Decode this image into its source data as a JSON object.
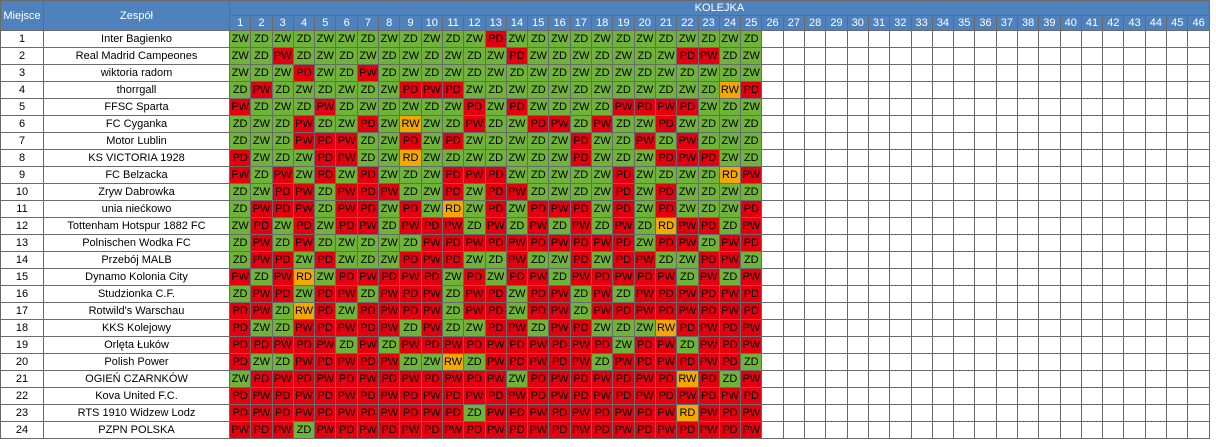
{
  "headers": {
    "place": "Miejsce",
    "team": "Zespół",
    "round_group": "KOLEJKA",
    "rounds": [
      "1",
      "2",
      "3",
      "4",
      "5",
      "6",
      "7",
      "8",
      "9",
      "10",
      "11",
      "12",
      "13",
      "14",
      "15",
      "16",
      "17",
      "18",
      "19",
      "20",
      "21",
      "22",
      "23",
      "24",
      "25",
      "26",
      "27",
      "28",
      "29",
      "30",
      "31",
      "32",
      "33",
      "34",
      "35",
      "36",
      "37",
      "38",
      "39",
      "40",
      "41",
      "42",
      "43",
      "44",
      "45",
      "46"
    ]
  },
  "result_colors": {
    "win": "#70b33b",
    "loss": "#e3000f",
    "draw": "#f2a800"
  },
  "rows": [
    {
      "place": "1",
      "team": "Inter Bagienko",
      "results": [
        "ZW",
        "ZD",
        "ZW",
        "ZD",
        "ZW",
        "ZW",
        "ZD",
        "ZW",
        "ZD",
        "ZW",
        "ZD",
        "ZW",
        "PD",
        "ZW",
        "ZD",
        "ZW",
        "ZD",
        "ZW",
        "ZD",
        "ZW",
        "ZD",
        "ZW",
        "ZD",
        "ZW",
        "ZD"
      ]
    },
    {
      "place": "2",
      "team": "Real Madrid Campeones",
      "results": [
        "ZW",
        "ZD",
        "PW",
        "ZD",
        "ZW",
        "ZD",
        "ZW",
        "ZD",
        "ZW",
        "ZD",
        "ZW",
        "ZD",
        "ZW",
        "PD",
        "ZW",
        "ZD",
        "ZW",
        "ZD",
        "ZW",
        "ZD",
        "ZW",
        "PD",
        "PW",
        "ZD",
        "ZW"
      ]
    },
    {
      "place": "3",
      "team": "wiktoria radom",
      "results": [
        "ZW",
        "ZD",
        "ZW",
        "PD",
        "ZW",
        "ZD",
        "PW",
        "ZD",
        "ZW",
        "ZD",
        "ZW",
        "ZD",
        "ZW",
        "ZD",
        "ZW",
        "ZD",
        "ZW",
        "ZD",
        "ZW",
        "ZD",
        "ZW",
        "ZD",
        "ZW",
        "ZD",
        "ZW"
      ]
    },
    {
      "place": "4",
      "team": "thorrgall",
      "results": [
        "ZD",
        "PW",
        "ZD",
        "ZW",
        "ZD",
        "ZW",
        "ZD",
        "ZW",
        "PD",
        "PW",
        "PD",
        "ZW",
        "ZD",
        "ZW",
        "ZD",
        "ZW",
        "ZD",
        "ZW",
        "ZD",
        "ZW",
        "ZD",
        "ZW",
        "ZD",
        "RW",
        "PD"
      ]
    },
    {
      "place": "5",
      "team": "FFSC Sparta",
      "results": [
        "PW",
        "ZD",
        "ZW",
        "ZD",
        "PW",
        "ZD",
        "ZW",
        "ZD",
        "ZW",
        "ZD",
        "ZW",
        "PD",
        "ZW",
        "PD",
        "ZW",
        "ZD",
        "ZW",
        "ZD",
        "PW",
        "PD",
        "PW",
        "PD",
        "ZW",
        "ZD",
        "ZW"
      ]
    },
    {
      "place": "6",
      "team": "FC Cyganka",
      "results": [
        "ZD",
        "ZW",
        "ZD",
        "PW",
        "ZD",
        "ZW",
        "PD",
        "ZW",
        "RW",
        "ZW",
        "ZD",
        "PW",
        "ZD",
        "ZW",
        "PD",
        "PW",
        "ZD",
        "PW",
        "ZD",
        "ZW",
        "PD",
        "ZW",
        "ZD",
        "ZW",
        "ZD"
      ]
    },
    {
      "place": "7",
      "team": "Motor Lublin",
      "results": [
        "ZD",
        "ZW",
        "ZD",
        "PW",
        "PD",
        "PW",
        "ZD",
        "ZW",
        "PD",
        "ZW",
        "PD",
        "ZW",
        "ZD",
        "ZW",
        "ZD",
        "ZW",
        "PD",
        "ZW",
        "ZD",
        "PW",
        "ZD",
        "PW",
        "ZD",
        "ZW",
        "ZD"
      ]
    },
    {
      "place": "8",
      "team": "KS VICTORIA 1928",
      "results": [
        "PD",
        "ZW",
        "ZD",
        "ZW",
        "PD",
        "PW",
        "ZD",
        "ZW",
        "RD",
        "ZW",
        "ZD",
        "ZW",
        "ZD",
        "ZW",
        "ZD",
        "ZW",
        "PD",
        "ZW",
        "ZD",
        "ZW",
        "PD",
        "PW",
        "PD",
        "ZW",
        "ZD"
      ]
    },
    {
      "place": "9",
      "team": "FC Belzacka",
      "results": [
        "PW",
        "ZD",
        "PW",
        "ZW",
        "PD",
        "ZW",
        "PD",
        "ZW",
        "ZD",
        "ZW",
        "PD",
        "PW",
        "PD",
        "ZW",
        "ZD",
        "ZW",
        "ZD",
        "ZW",
        "PD",
        "ZW",
        "ZD",
        "ZW",
        "ZD",
        "RD",
        "PW"
      ]
    },
    {
      "place": "10",
      "team": "Zryw Dabrowka",
      "results": [
        "ZD",
        "ZW",
        "PD",
        "PW",
        "ZD",
        "PW",
        "PD",
        "PW",
        "ZD",
        "ZW",
        "PD",
        "ZW",
        "PD",
        "PW",
        "ZD",
        "ZW",
        "ZD",
        "ZW",
        "PD",
        "ZW",
        "PD",
        "ZW",
        "ZD",
        "ZW",
        "ZD"
      ]
    },
    {
      "place": "11",
      "team": "unia niećkowo",
      "results": [
        "ZD",
        "PW",
        "PD",
        "PW",
        "ZD",
        "PW",
        "PD",
        "ZW",
        "PD",
        "ZW",
        "RD",
        "ZW",
        "PD",
        "ZW",
        "PD",
        "PW",
        "PD",
        "ZW",
        "PD",
        "ZW",
        "PD",
        "ZW",
        "ZD",
        "ZW",
        "PD"
      ]
    },
    {
      "place": "12",
      "team": "Tottenham Hotspur 1882 FC",
      "results": [
        "ZW",
        "PD",
        "ZW",
        "PD",
        "ZW",
        "PD",
        "PW",
        "ZD",
        "PW",
        "PD",
        "PW",
        "ZD",
        "PW",
        "ZD",
        "PW",
        "ZD",
        "PW",
        "ZD",
        "PW",
        "ZD",
        "RD",
        "PW",
        "PD",
        "ZD",
        "PW"
      ]
    },
    {
      "place": "13",
      "team": "Polnischen Wodka FC",
      "results": [
        "ZD",
        "PW",
        "ZD",
        "PW",
        "ZD",
        "ZW",
        "ZD",
        "ZW",
        "ZD",
        "PW",
        "PD",
        "PW",
        "PD",
        "PW",
        "PD",
        "PW",
        "PD",
        "PW",
        "PD",
        "ZW",
        "PD",
        "PW",
        "ZD",
        "PW",
        "PD"
      ]
    },
    {
      "place": "14",
      "team": "Przebój MALB",
      "results": [
        "ZD",
        "PW",
        "PD",
        "ZW",
        "PD",
        "ZW",
        "ZD",
        "ZW",
        "PD",
        "PW",
        "PD",
        "ZW",
        "ZD",
        "PW",
        "ZD",
        "ZW",
        "PD",
        "ZW",
        "PD",
        "PW",
        "ZD",
        "ZW",
        "PD",
        "PW",
        "ZD"
      ]
    },
    {
      "place": "15",
      "team": "Dynamo Kolonia City",
      "results": [
        "PW",
        "ZD",
        "PW",
        "RD",
        "ZW",
        "PD",
        "PW",
        "PD",
        "PW",
        "PD",
        "ZW",
        "PD",
        "ZW",
        "PD",
        "PW",
        "ZD",
        "PW",
        "PD",
        "PW",
        "PD",
        "PW",
        "ZD",
        "PW",
        "ZD",
        "PW"
      ]
    },
    {
      "place": "16",
      "team": "Studzionka C.F.",
      "results": [
        "ZD",
        "PW",
        "PD",
        "ZW",
        "PD",
        "PW",
        "ZD",
        "PW",
        "PD",
        "PW",
        "ZD",
        "PW",
        "PD",
        "ZW",
        "PD",
        "PW",
        "ZD",
        "PW",
        "ZD",
        "PW",
        "PD",
        "PW",
        "PD",
        "PW",
        "PD"
      ]
    },
    {
      "place": "17",
      "team": "Rotwild's Warschau",
      "results": [
        "PD",
        "PW",
        "ZD",
        "RW",
        "PD",
        "ZW",
        "PD",
        "PW",
        "PD",
        "PW",
        "ZD",
        "PW",
        "PD",
        "ZW",
        "PD",
        "PW",
        "ZD",
        "PW",
        "PD",
        "PW",
        "PD",
        "PW",
        "PD",
        "PW",
        "PD"
      ]
    },
    {
      "place": "18",
      "team": "KKS Kolejowy",
      "results": [
        "PD",
        "ZW",
        "ZD",
        "PW",
        "PD",
        "PW",
        "PD",
        "PW",
        "ZD",
        "PW",
        "ZD",
        "ZW",
        "PD",
        "PW",
        "ZD",
        "PW",
        "PD",
        "ZW",
        "ZD",
        "ZW",
        "RW",
        "PD",
        "PW",
        "PD",
        "PW"
      ]
    },
    {
      "place": "19",
      "team": "Orlęta Łuków",
      "results": [
        "PD",
        "PD",
        "PW",
        "PD",
        "PW",
        "ZD",
        "PW",
        "ZD",
        "PW",
        "PD",
        "PW",
        "PD",
        "PW",
        "PD",
        "PW",
        "PD",
        "PW",
        "PD",
        "ZW",
        "PD",
        "PW",
        "ZD",
        "PW",
        "PD",
        "PW"
      ]
    },
    {
      "place": "20",
      "team": "Polish Power",
      "results": [
        "PD",
        "ZW",
        "ZD",
        "PW",
        "PD",
        "PW",
        "PD",
        "PW",
        "ZD",
        "ZW",
        "RW",
        "ZD",
        "PW",
        "PD",
        "PW",
        "PD",
        "PW",
        "ZD",
        "PW",
        "PD",
        "PW",
        "PD",
        "PW",
        "PD",
        "ZD"
      ]
    },
    {
      "place": "21",
      "team": "OGIEŃ CZARNKÓW",
      "results": [
        "ZW",
        "PD",
        "PW",
        "PD",
        "PW",
        "PD",
        "PW",
        "PD",
        "PW",
        "PD",
        "PW",
        "PD",
        "PW",
        "ZW",
        "PD",
        "PW",
        "PD",
        "PW",
        "PD",
        "PW",
        "PD",
        "RW",
        "PD",
        "ZD",
        "PW"
      ]
    },
    {
      "place": "22",
      "team": "Kova United F.C.",
      "results": [
        "PD",
        "PW",
        "PD",
        "PW",
        "PD",
        "PW",
        "PD",
        "PW",
        "PD",
        "PW",
        "PD",
        "PW",
        "PD",
        "PW",
        "PD",
        "PW",
        "PD",
        "PW",
        "PD",
        "PW",
        "PD",
        "PW",
        "PD",
        "PW",
        "PD"
      ]
    },
    {
      "place": "23",
      "team": "RTS 1910 Widzew Lodz",
      "results": [
        "PD",
        "PW",
        "PD",
        "PW",
        "PD",
        "PW",
        "PD",
        "PW",
        "PD",
        "PW",
        "PD",
        "ZD",
        "PW",
        "PD",
        "PW",
        "PD",
        "PW",
        "PD",
        "PW",
        "PD",
        "PW",
        "RD",
        "PW",
        "PD",
        "PW"
      ]
    },
    {
      "place": "24",
      "team": "PZPN POLSKA",
      "results": [
        "PW",
        "PD",
        "PW",
        "ZD",
        "PW",
        "PD",
        "PW",
        "PD",
        "PW",
        "PD",
        "PW",
        "PD",
        "PW",
        "PD",
        "PW",
        "PD",
        "PW",
        "PD",
        "PW",
        "PD",
        "PW",
        "PD",
        "PW",
        "PD",
        "PW"
      ]
    }
  ]
}
